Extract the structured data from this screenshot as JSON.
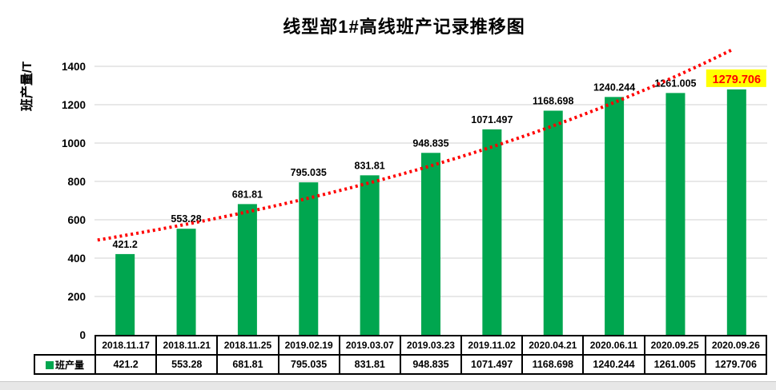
{
  "window": {
    "background": "#FFFFFF",
    "footer_strip_color": "#E7E7E7"
  },
  "chart_data": {
    "type": "bar",
    "title": "线型部1#高线班产记录推移图",
    "xlabel": "",
    "ylabel": "班产量/T",
    "categories": [
      "2018.11.17",
      "2018.11.21",
      "2018.11.25",
      "2019.02.19",
      "2019.03.07",
      "2019.03.23",
      "2019.11.02",
      "2020.04.21",
      "2020.06.11",
      "2020.09.25",
      "2020.09.26"
    ],
    "series": [
      {
        "name": "班产量",
        "color": "#00A64F",
        "values": [
          421.2,
          553.28,
          681.81,
          795.035,
          831.81,
          948.835,
          1071.497,
          1168.698,
          1240.244,
          1261.005,
          1279.706
        ]
      }
    ],
    "value_labels": [
      "421.2",
      "553.28",
      "681.81",
      "795.035",
      "831.81",
      "948.835",
      "1071.497",
      "1168.698",
      "1240.244",
      "1261.005",
      "1279.706"
    ],
    "ylim": [
      0,
      1500
    ],
    "yticks": [
      0,
      200,
      400,
      600,
      800,
      1000,
      1200,
      1400
    ],
    "grid": "horizontal-major",
    "gridline_color": "#D9D9D9",
    "legend_position": "data-table-left",
    "trendline": {
      "type": "exponential",
      "a": 466.4,
      "b": 0.1061,
      "color": "#FF0000",
      "style": "dotted"
    },
    "highlight_last_label": {
      "text_color": "#FF0000",
      "background_color": "#FFFF00"
    }
  }
}
